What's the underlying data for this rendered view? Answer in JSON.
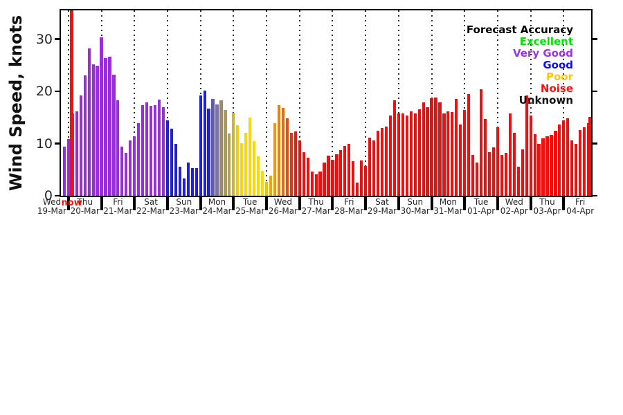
{
  "chart_data": {
    "type": "bar",
    "ylabel": "Wind Speed, knots",
    "unit": "knots",
    "y_ticks": [
      0,
      10,
      20,
      30
    ],
    "ylim": [
      0,
      35.5
    ],
    "grid": "vertical-dotted-at-day-boundaries",
    "bars_per_day": 8,
    "bar_interval_hours": 3,
    "now_marker": {
      "label": "now",
      "color": "#fa0d0a"
    },
    "legend": {
      "title": "Forecast Accuracy",
      "position": "top-right-inside",
      "entries": [
        {
          "label": "Excellent",
          "color": "#00e400"
        },
        {
          "label": "Very Good",
          "color": "#9933ee"
        },
        {
          "label": "Good",
          "color": "#0d0dfa"
        },
        {
          "label": "Poor",
          "color": "#ffc703"
        },
        {
          "label": "Noise",
          "color": "#fb0f0c"
        },
        {
          "label": "Unknown",
          "color": "#141414"
        }
      ]
    },
    "days": [
      {
        "day": "Wed",
        "date": "19-Mar",
        "values": [
          9.4
        ],
        "colors": [
          "#962fd4"
        ]
      },
      {
        "day": "Thu",
        "date": "20-Mar",
        "values": [
          10.8,
          15.8,
          16.1,
          19.2,
          23.0,
          28.2,
          25.2,
          24.9
        ],
        "colors": [
          "#962fd4",
          "#962fd4",
          "#962fd4",
          "#962fd4",
          "#962fd4",
          "#962fd4",
          "#962fd4",
          "#962fd4"
        ]
      },
      {
        "day": "Fri",
        "date": "21-Mar",
        "values": [
          30.4,
          26.3,
          26.6,
          23.2,
          18.3,
          9.4,
          8.2,
          10.6
        ],
        "colors": [
          "#962fd4",
          "#962fd4",
          "#962fd4",
          "#962fd4",
          "#962fd4",
          "#962fd4",
          "#962fd4",
          "#962fd4"
        ]
      },
      {
        "day": "Sat",
        "date": "22-Mar",
        "values": [
          11.4,
          13.9,
          17.3,
          17.9,
          17.2,
          17.3,
          18.4,
          17.0
        ],
        "colors": [
          "#962fd4",
          "#962fd4",
          "#962fd4",
          "#962fd4",
          "#962fd4",
          "#962fd4",
          "#962fd4",
          "#962fd4"
        ]
      },
      {
        "day": "Sun",
        "date": "23-Mar",
        "values": [
          14.5,
          12.9,
          9.9,
          5.5,
          3.3,
          6.3,
          5.3,
          5.3
        ],
        "colors": [
          "#2121d1",
          "#2121d1",
          "#2121d1",
          "#2121d1",
          "#2121d1",
          "#2121d1",
          "#2121d1",
          "#2121d1"
        ]
      },
      {
        "day": "Mon",
        "date": "24-Mar",
        "values": [
          19.2,
          20.1,
          16.7,
          18.6,
          17.5,
          18.3,
          16.4,
          11.9
        ],
        "colors": [
          "#2121d1",
          "#2121d1",
          "#2121d1",
          "#5e58bb",
          "#7a70ab",
          "#99896f",
          "#ab9a52",
          "#b1a14b"
        ]
      },
      {
        "day": "Tue",
        "date": "25-Mar",
        "values": [
          15.9,
          13.5,
          10.1,
          12.1,
          15.0,
          10.5,
          7.5,
          4.8
        ],
        "colors": [
          "#cdb53a",
          "#f0d103",
          "#f6da00",
          "#f6da00",
          "#f6da00",
          "#f6da00",
          "#f6da00",
          "#f8de00"
        ]
      },
      {
        "day": "Wed",
        "date": "26-Mar",
        "values": [
          2.6,
          3.8,
          13.9,
          17.4,
          16.8,
          14.9,
          12.0,
          12.3
        ],
        "colors": [
          "#e5c400",
          "#f0a801",
          "#f39413",
          "#f07d0d",
          "#ee690b",
          "#ea4e0d",
          "#e63413",
          "#e51d12"
        ]
      },
      {
        "day": "Thu",
        "date": "27-Mar",
        "values": [
          10.6,
          8.4,
          7.3,
          4.6,
          4.1,
          4.7,
          6.4,
          7.7
        ],
        "colors": [
          "#ec1111",
          "#ec1111",
          "#ec1111",
          "#ec1111",
          "#ec1111",
          "#ec1111",
          "#ec1111",
          "#ec1111"
        ]
      },
      {
        "day": "Fri",
        "date": "28-Mar",
        "values": [
          6.9,
          8.0,
          8.7,
          9.5,
          10.0,
          6.6,
          2.5,
          6.7
        ],
        "colors": [
          "#ec1111",
          "#ec1111",
          "#ec1111",
          "#ec1111",
          "#ec1111",
          "#ec1111",
          "#ec1111",
          "#ec1111"
        ]
      },
      {
        "day": "Sat",
        "date": "29-Mar",
        "values": [
          5.7,
          11.1,
          10.6,
          12.5,
          13.0,
          13.2,
          15.4,
          18.3
        ],
        "colors": [
          "#ec1111",
          "#ec1111",
          "#ec1111",
          "#ec1111",
          "#ec1111",
          "#ec1111",
          "#ec1111",
          "#ec1111"
        ]
      },
      {
        "day": "Sun",
        "date": "30-Mar",
        "values": [
          15.7,
          15.7,
          15.4,
          16.2,
          15.8,
          16.5,
          17.9,
          16.9
        ],
        "colors": [
          "#ec1111",
          "#ec1111",
          "#ec1111",
          "#ec1111",
          "#ec1111",
          "#ec1111",
          "#ec1111",
          "#ec1111"
        ]
      },
      {
        "day": "Mon",
        "date": "31-Mar",
        "values": [
          18.7,
          18.8,
          17.9,
          15.7,
          16.1,
          16.0,
          18.5,
          13.6
        ],
        "colors": [
          "#ec1111",
          "#ec1111",
          "#ec1111",
          "#ec1111",
          "#ec1111",
          "#ec1111",
          "#ec1111",
          "#ec1111"
        ]
      },
      {
        "day": "Tue",
        "date": "01-Apr",
        "values": [
          16.4,
          19.5,
          7.8,
          6.4,
          20.4,
          14.7,
          8.4,
          9.3
        ],
        "colors": [
          "#ec1111",
          "#ec1111",
          "#ec1111",
          "#ec1111",
          "#ec1111",
          "#ec1111",
          "#ec1111",
          "#ec1111"
        ]
      },
      {
        "day": "Wed",
        "date": "02-Apr",
        "values": [
          13.1,
          7.8,
          8.2,
          15.7,
          12.0,
          5.5,
          8.9,
          19.2
        ],
        "colors": [
          "#ec1111",
          "#ec1111",
          "#ec1111",
          "#ec1111",
          "#ec1111",
          "#ec1111",
          "#ec1111",
          "#ec1111"
        ]
      },
      {
        "day": "Thu",
        "date": "03-Apr",
        "values": [
          15.4,
          11.8,
          10.0,
          11.0,
          11.4,
          11.6,
          12.5,
          13.6
        ],
        "colors": [
          "#ec1111",
          "#ec1111",
          "#ec1111",
          "#ec1111",
          "#ec1111",
          "#ec1111",
          "#ec1111",
          "#ec1111"
        ]
      },
      {
        "day": "Fri",
        "date": "04-Apr",
        "values": [
          14.4,
          14.9,
          10.6,
          10.0,
          12.6,
          13.1,
          13.9,
          15.1
        ],
        "colors": [
          "#ec1111",
          "#ec1111",
          "#ec1111",
          "#ec1111",
          "#ec1111",
          "#ec1111",
          "#ec1111",
          "#ec1111"
        ]
      }
    ]
  }
}
